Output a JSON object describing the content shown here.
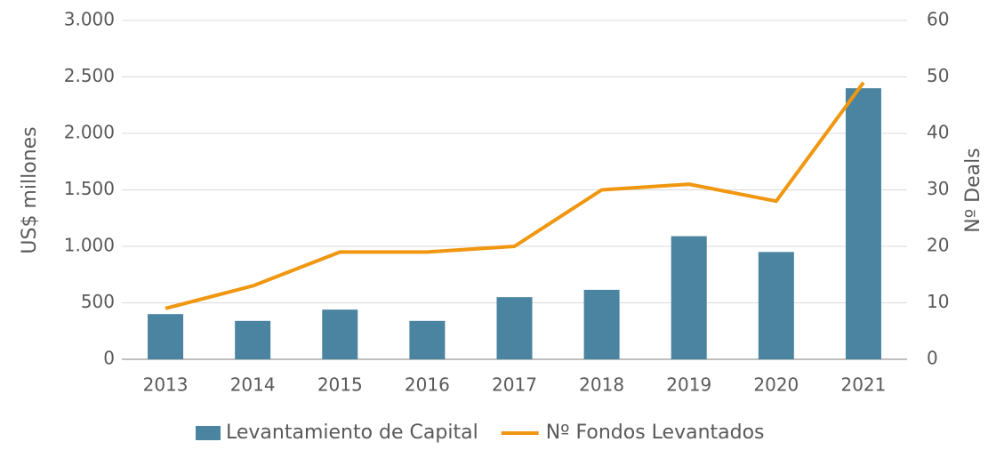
{
  "chart_data": {
    "type": "bar_line",
    "categories": [
      "2013",
      "2014",
      "2015",
      "2016",
      "2017",
      "2018",
      "2019",
      "2020",
      "2021"
    ],
    "series": [
      {
        "name": "Levantamiento de Capital",
        "color": "#4a84a0",
        "type": "bar",
        "values": [
          400,
          340,
          440,
          340,
          550,
          615,
          1090,
          950,
          2400
        ]
      },
      {
        "name": "Nº Fondos Levantados",
        "color": "#f0960f",
        "type": "line",
        "axis": "y2",
        "values": [
          9,
          13,
          19,
          19,
          20,
          30,
          31,
          28,
          49
        ]
      }
    ],
    "ylabel": "US$ millones",
    "y2label": "Nº Deals",
    "ylim": [
      0,
      3000
    ],
    "yticks": [
      0,
      500,
      {
        "value": 1000,
        "label": "1.000"
      },
      {
        "value": 1500,
        "label": "1.500"
      },
      {
        "value": 2000,
        "label": "2.000"
      },
      {
        "value": 2500,
        "label": "2.500"
      },
      {
        "value": 3000,
        "label": "3.000"
      }
    ],
    "y2lim": [
      0,
      60
    ],
    "y2ticks": [
      0,
      10,
      20,
      30,
      40,
      50,
      60
    ],
    "grid": true,
    "legend": "bottom"
  }
}
